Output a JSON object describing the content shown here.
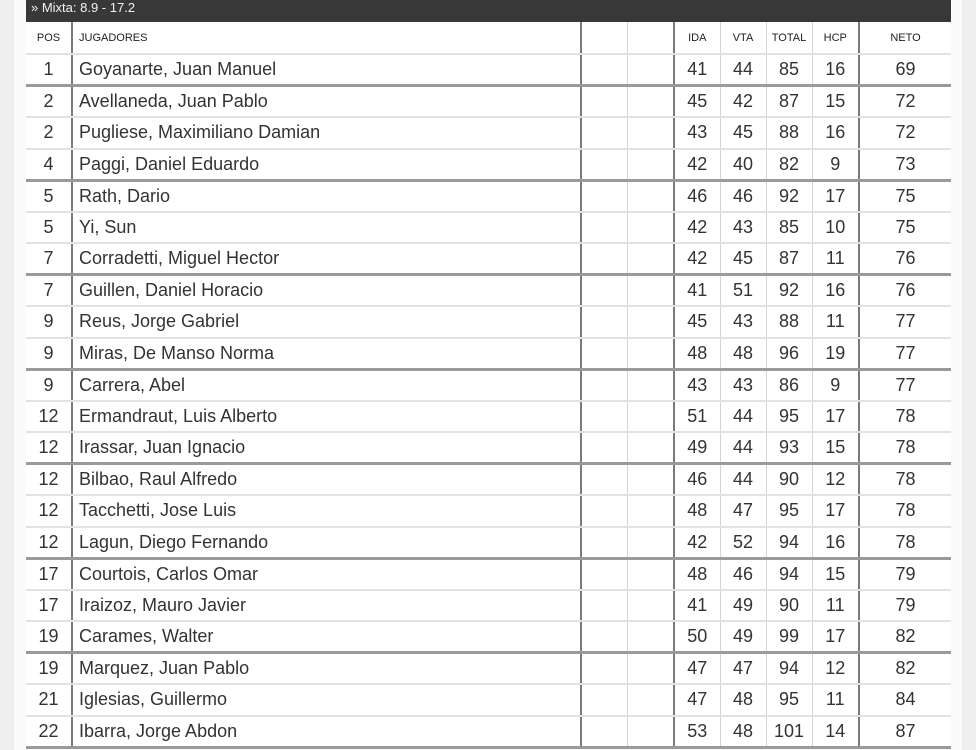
{
  "category_title": "» Mixta: 8.9 - 17.2",
  "headers": {
    "pos": "POS",
    "players": "JUGADORES",
    "blank1": "",
    "blank2": "",
    "ida": "IDA",
    "vta": "VTA",
    "total": "TOTAL",
    "hcp": "HCP",
    "neto": "NETO"
  },
  "rows": [
    {
      "pos": "1",
      "name": "Goyanarte, Juan Manuel",
      "ida": "41",
      "vta": "44",
      "total": "85",
      "hcp": "16",
      "neto": "69"
    },
    {
      "pos": "2",
      "name": "Avellaneda, Juan Pablo",
      "ida": "45",
      "vta": "42",
      "total": "87",
      "hcp": "15",
      "neto": "72"
    },
    {
      "pos": "2",
      "name": "Pugliese, Maximiliano Damian",
      "ida": "43",
      "vta": "45",
      "total": "88",
      "hcp": "16",
      "neto": "72"
    },
    {
      "pos": "4",
      "name": "Paggi, Daniel Eduardo",
      "ida": "42",
      "vta": "40",
      "total": "82",
      "hcp": "9",
      "neto": "73"
    },
    {
      "pos": "5",
      "name": "Rath, Dario",
      "ida": "46",
      "vta": "46",
      "total": "92",
      "hcp": "17",
      "neto": "75"
    },
    {
      "pos": "5",
      "name": "Yi, Sun",
      "ida": "42",
      "vta": "43",
      "total": "85",
      "hcp": "10",
      "neto": "75"
    },
    {
      "pos": "7",
      "name": "Corradetti, Miguel Hector",
      "ida": "42",
      "vta": "45",
      "total": "87",
      "hcp": "11",
      "neto": "76"
    },
    {
      "pos": "7",
      "name": "Guillen, Daniel Horacio",
      "ida": "41",
      "vta": "51",
      "total": "92",
      "hcp": "16",
      "neto": "76"
    },
    {
      "pos": "9",
      "name": "Reus, Jorge Gabriel",
      "ida": "45",
      "vta": "43",
      "total": "88",
      "hcp": "11",
      "neto": "77"
    },
    {
      "pos": "9",
      "name": "Miras, De Manso Norma",
      "ida": "48",
      "vta": "48",
      "total": "96",
      "hcp": "19",
      "neto": "77"
    },
    {
      "pos": "9",
      "name": "Carrera, Abel",
      "ida": "43",
      "vta": "43",
      "total": "86",
      "hcp": "9",
      "neto": "77"
    },
    {
      "pos": "12",
      "name": "Ermandraut, Luis Alberto",
      "ida": "51",
      "vta": "44",
      "total": "95",
      "hcp": "17",
      "neto": "78"
    },
    {
      "pos": "12",
      "name": "Irassar, Juan Ignacio",
      "ida": "49",
      "vta": "44",
      "total": "93",
      "hcp": "15",
      "neto": "78"
    },
    {
      "pos": "12",
      "name": "Bilbao, Raul Alfredo",
      "ida": "46",
      "vta": "44",
      "total": "90",
      "hcp": "12",
      "neto": "78"
    },
    {
      "pos": "12",
      "name": "Tacchetti, Jose Luis",
      "ida": "48",
      "vta": "47",
      "total": "95",
      "hcp": "17",
      "neto": "78"
    },
    {
      "pos": "12",
      "name": "Lagun, Diego Fernando",
      "ida": "42",
      "vta": "52",
      "total": "94",
      "hcp": "16",
      "neto": "78"
    },
    {
      "pos": "17",
      "name": "Courtois, Carlos Omar",
      "ida": "48",
      "vta": "46",
      "total": "94",
      "hcp": "15",
      "neto": "79"
    },
    {
      "pos": "17",
      "name": "Iraizoz, Mauro Javier",
      "ida": "41",
      "vta": "49",
      "total": "90",
      "hcp": "11",
      "neto": "79"
    },
    {
      "pos": "19",
      "name": "Carames, Walter",
      "ida": "50",
      "vta": "49",
      "total": "99",
      "hcp": "17",
      "neto": "82"
    },
    {
      "pos": "19",
      "name": "Marquez, Juan Pablo",
      "ida": "47",
      "vta": "47",
      "total": "94",
      "hcp": "12",
      "neto": "82"
    },
    {
      "pos": "21",
      "name": "Iglesias, Guillermo",
      "ida": "47",
      "vta": "48",
      "total": "95",
      "hcp": "11",
      "neto": "84"
    },
    {
      "pos": "22",
      "name": "Ibarra, Jorge Abdon",
      "ida": "53",
      "vta": "48",
      "total": "101",
      "hcp": "14",
      "neto": "87"
    }
  ]
}
